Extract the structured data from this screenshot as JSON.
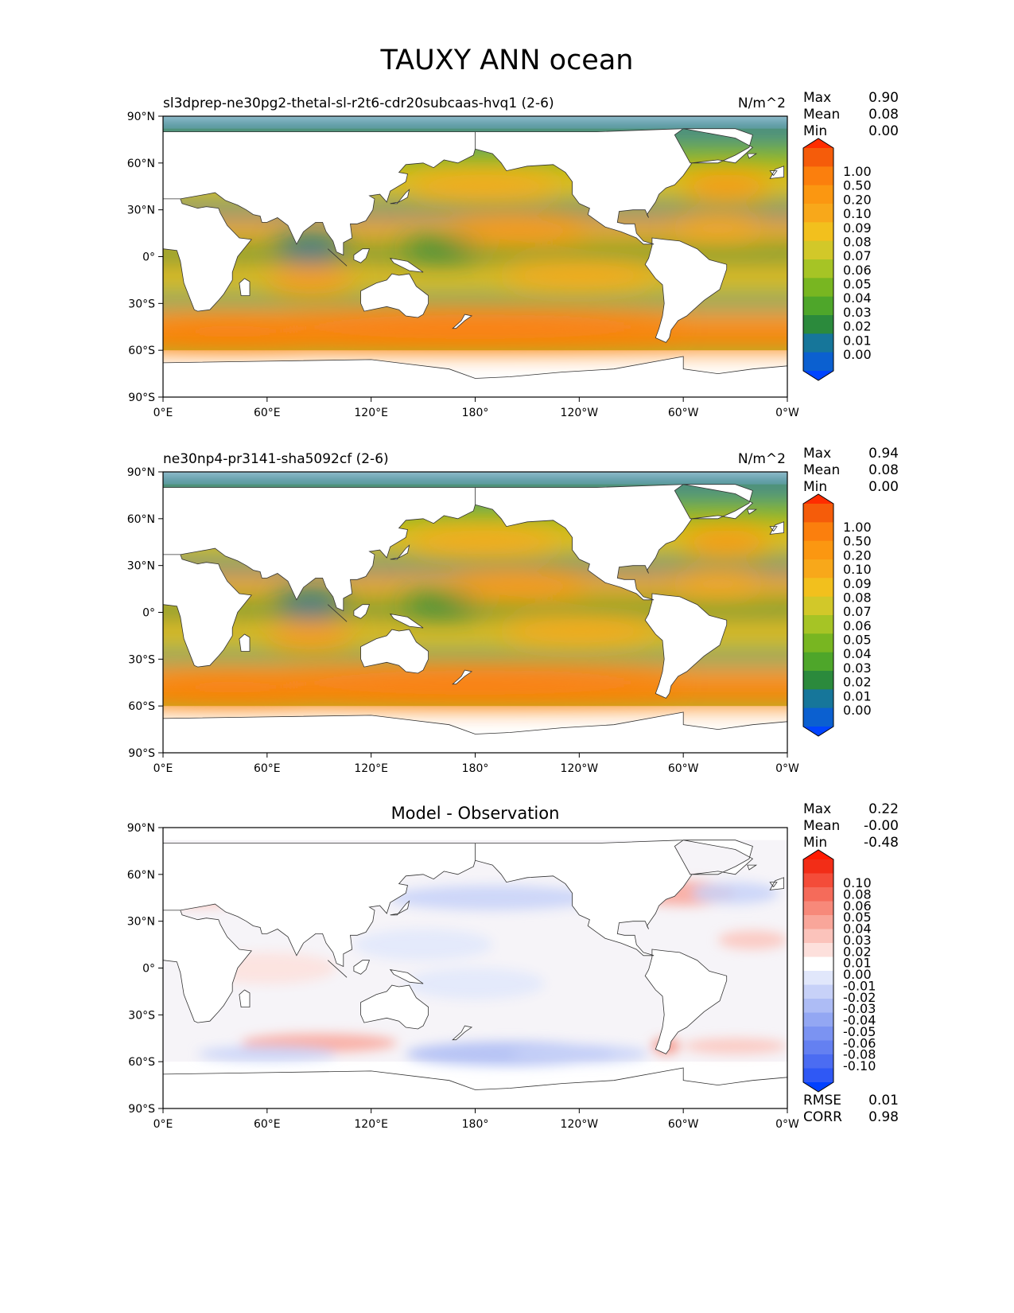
{
  "figure": {
    "title": "TAUXY ANN ocean"
  },
  "axes": {
    "lat_labels": [
      "90°N",
      "60°N",
      "30°N",
      "0°",
      "30°S",
      "60°S",
      "90°S"
    ],
    "lon_labels": [
      "0°E",
      "60°E",
      "120°E",
      "180°",
      "120°W",
      "60°W",
      "0°W"
    ]
  },
  "panels": [
    {
      "id": "test",
      "title_left": "sl3dprep-ne30pg2-thetal-sl-r2t6-cdr20subcaas-hvq1 (2-6)",
      "title_center": "",
      "units": "N/m^2",
      "stats": [
        {
          "label": "Max",
          "value": "0.90"
        },
        {
          "label": "Mean",
          "value": "0.08"
        },
        {
          "label": "Min",
          "value": "0.00"
        }
      ],
      "colorbar_labels": [
        "1.00",
        "0.50",
        "0.20",
        "0.10",
        "0.09",
        "0.08",
        "0.07",
        "0.06",
        "0.05",
        "0.04",
        "0.03",
        "0.02",
        "0.01",
        "0.00"
      ],
      "extra_stats": []
    },
    {
      "id": "reference",
      "title_left": "ne30np4-pr3141-sha5092cf (2-6)",
      "title_center": "",
      "units": "N/m^2",
      "stats": [
        {
          "label": "Max",
          "value": "0.94"
        },
        {
          "label": "Mean",
          "value": "0.08"
        },
        {
          "label": "Min",
          "value": "0.00"
        }
      ],
      "colorbar_labels": [
        "1.00",
        "0.50",
        "0.20",
        "0.10",
        "0.09",
        "0.08",
        "0.07",
        "0.06",
        "0.05",
        "0.04",
        "0.03",
        "0.02",
        "0.01",
        "0.00"
      ],
      "extra_stats": []
    },
    {
      "id": "difference",
      "title_left": "",
      "title_center": "Model - Observation",
      "units": "",
      "stats": [
        {
          "label": "Max",
          "value": "0.22"
        },
        {
          "label": "Mean",
          "value": "-0.00"
        },
        {
          "label": "Min",
          "value": "-0.48"
        }
      ],
      "colorbar_labels": [
        "0.10",
        "0.08",
        "0.06",
        "0.05",
        "0.04",
        "0.03",
        "0.02",
        "0.01",
        "0.00",
        "-0.01",
        "-0.02",
        "-0.03",
        "-0.04",
        "-0.05",
        "-0.06",
        "-0.08",
        "-0.10"
      ],
      "extra_stats": [
        {
          "label": "RMSE",
          "value": "0.01"
        },
        {
          "label": "CORR",
          "value": "0.98"
        }
      ]
    }
  ],
  "colors": {
    "field_scale": [
      "#0044ff",
      "#0b60d0",
      "#16769a",
      "#2b8a3c",
      "#4ea62a",
      "#78b621",
      "#a6c425",
      "#d2c829",
      "#f2c01d",
      "#f8a81a",
      "#fb9711",
      "#fb7f0d",
      "#f55c0a",
      "#ff2d00"
    ],
    "diff_scale": [
      "#0040ff",
      "#2f58f5",
      "#4b6cf2",
      "#6480f1",
      "#7b93f2",
      "#93a7f3",
      "#adbcf5",
      "#c7d1f8",
      "#e1e7fb",
      "#ffffff",
      "#fde0dc",
      "#fbc3bb",
      "#f9a69a",
      "#f7897a",
      "#f56b5a",
      "#f44c39",
      "#f22d17",
      "#ff1a00"
    ],
    "land": "#ffffff",
    "coast": "#333333"
  }
}
